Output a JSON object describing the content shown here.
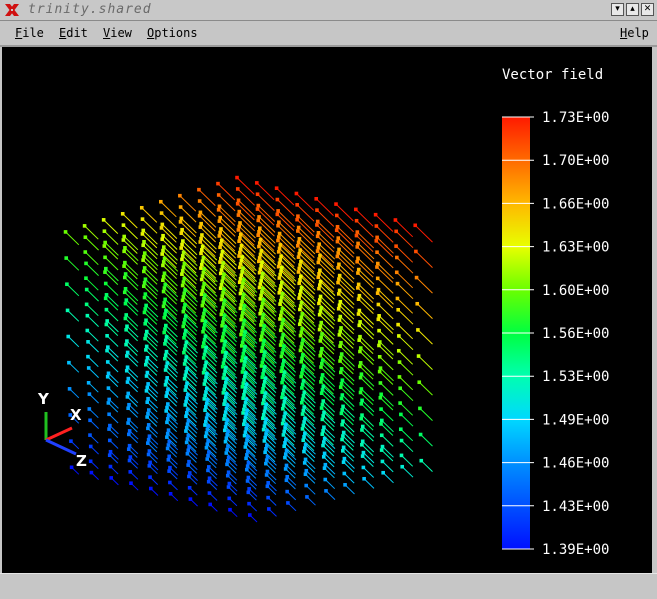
{
  "window": {
    "title": "trinity.shared",
    "buttons": [
      "minimize",
      "maximize",
      "close"
    ]
  },
  "menubar": {
    "items": [
      {
        "label": "File",
        "mnemonic": "F"
      },
      {
        "label": "Edit",
        "mnemonic": "E"
      },
      {
        "label": "View",
        "mnemonic": "V"
      },
      {
        "label": "Options",
        "mnemonic": "O"
      }
    ],
    "help": {
      "label": "Help",
      "mnemonic": "H"
    }
  },
  "legend": {
    "title": "Vector field",
    "ticks": [
      "1.73E+00",
      "1.70E+00",
      "1.66E+00",
      "1.63E+00",
      "1.60E+00",
      "1.56E+00",
      "1.53E+00",
      "1.49E+00",
      "1.46E+00",
      "1.43E+00",
      "1.39E+00"
    ],
    "colors": [
      "#ff1a00",
      "#ff6a00",
      "#ffb800",
      "#e8ff00",
      "#6aff00",
      "#00ff40",
      "#00ffb0",
      "#00d8ff",
      "#0090ff",
      "#0050ff",
      "#0010ff"
    ]
  },
  "axes": {
    "labels": [
      "X",
      "Y",
      "Z"
    ],
    "colors": {
      "x": "#ff2020",
      "y": "#20c020",
      "z": "#2040ff"
    }
  },
  "field": {
    "value_range": [
      1.39,
      1.73
    ]
  }
}
